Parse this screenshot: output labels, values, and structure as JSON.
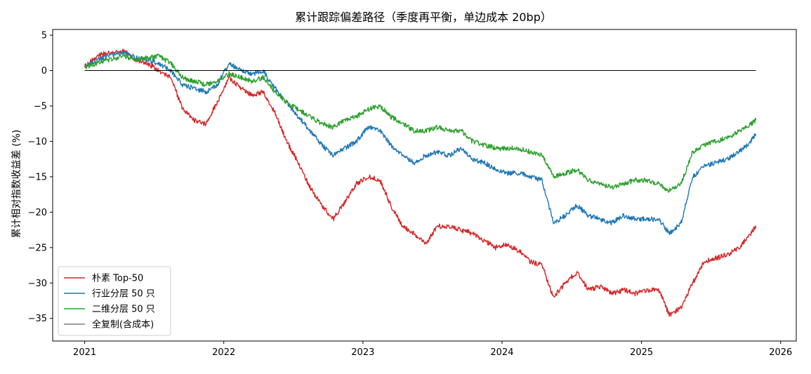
{
  "chart_data": {
    "type": "line",
    "title": "累计跟踪偏差路径（季度再平衡，单边成本 20bp）",
    "xlabel": "",
    "ylabel": "累计相对指数收益差 (%)",
    "x_ticks": [
      "2021",
      "2022",
      "2023",
      "2024",
      "2025",
      "2026"
    ],
    "y_ticks": [
      "5",
      "0",
      "−5",
      "−10",
      "−15",
      "−20",
      "−25",
      "−30",
      "−35"
    ],
    "xlim": [
      "2020-10-09",
      "2026-02-11"
    ],
    "ylim": [
      -38.2,
      5.8
    ],
    "grid": false,
    "legend": "lower-left",
    "series": [
      {
        "name": "朴素 Top-50",
        "color": "#d62728",
        "x": [
          "2021-01-01",
          "2021-02-01",
          "2021-03-01",
          "2021-04-15",
          "2021-05-15",
          "2021-06-15",
          "2021-07-15",
          "2021-08-15",
          "2021-09-15",
          "2021-10-15",
          "2021-11-15",
          "2021-12-15",
          "2022-01-15",
          "2022-02-15",
          "2022-03-15",
          "2022-04-15",
          "2022-05-15",
          "2022-06-15",
          "2022-07-15",
          "2022-08-15",
          "2022-09-15",
          "2022-10-15",
          "2022-11-15",
          "2022-12-15",
          "2023-01-15",
          "2023-02-15",
          "2023-03-15",
          "2023-04-15",
          "2023-05-15",
          "2023-06-15",
          "2023-07-15",
          "2023-08-15",
          "2023-09-15",
          "2023-10-15",
          "2023-11-15",
          "2023-12-15",
          "2024-01-15",
          "2024-02-15",
          "2024-03-15",
          "2024-04-15",
          "2024-05-15",
          "2024-06-15",
          "2024-07-15",
          "2024-08-15",
          "2024-09-15",
          "2024-10-15",
          "2024-11-15",
          "2024-12-15",
          "2025-01-15",
          "2025-02-15",
          "2025-03-15",
          "2025-04-15",
          "2025-05-15",
          "2025-06-15",
          "2025-07-15",
          "2025-08-15",
          "2025-09-15",
          "2025-10-15",
          "2025-10-28"
        ],
        "y": [
          0.5,
          2.0,
          2.5,
          2.8,
          1.5,
          1.0,
          0.0,
          -1.0,
          -5.5,
          -7.0,
          -7.5,
          -4.5,
          -1.0,
          -2.5,
          -3.5,
          -3.0,
          -6.0,
          -10.0,
          -13.0,
          -16.5,
          -19.0,
          -21.0,
          -18.5,
          -16.0,
          -15.0,
          -15.5,
          -19.0,
          -22.0,
          -23.0,
          -24.5,
          -22.0,
          -22.0,
          -22.5,
          -23.0,
          -24.0,
          -25.0,
          -24.5,
          -25.5,
          -27.0,
          -27.5,
          -32.0,
          -30.0,
          -28.5,
          -31.0,
          -30.5,
          -31.5,
          -31.0,
          -31.5,
          -31.0,
          -31.0,
          -34.5,
          -33.5,
          -30.0,
          -27.0,
          -26.5,
          -26.0,
          -25.0,
          -23.0,
          -22.0
        ]
      },
      {
        "name": "行业分层 50 只",
        "color": "#1f77b4",
        "x": [
          "2021-01-01",
          "2021-02-01",
          "2021-03-01",
          "2021-04-15",
          "2021-05-15",
          "2021-06-15",
          "2021-07-15",
          "2021-08-15",
          "2021-09-15",
          "2021-10-15",
          "2021-11-15",
          "2021-12-15",
          "2022-01-15",
          "2022-02-15",
          "2022-03-15",
          "2022-04-15",
          "2022-05-15",
          "2022-06-15",
          "2022-07-15",
          "2022-08-15",
          "2022-09-15",
          "2022-10-15",
          "2022-11-15",
          "2022-12-15",
          "2023-01-15",
          "2023-02-15",
          "2023-03-15",
          "2023-04-15",
          "2023-05-15",
          "2023-06-15",
          "2023-07-15",
          "2023-08-15",
          "2023-09-15",
          "2023-10-15",
          "2023-11-15",
          "2023-12-15",
          "2024-01-15",
          "2024-02-15",
          "2024-03-15",
          "2024-04-15",
          "2024-05-15",
          "2024-06-15",
          "2024-07-15",
          "2024-08-15",
          "2024-09-15",
          "2024-10-15",
          "2024-11-15",
          "2024-12-15",
          "2025-01-15",
          "2025-02-15",
          "2025-03-15",
          "2025-04-15",
          "2025-05-15",
          "2025-06-15",
          "2025-07-15",
          "2025-08-15",
          "2025-09-15",
          "2025-10-15",
          "2025-10-28"
        ],
        "y": [
          0.5,
          1.5,
          2.0,
          2.5,
          1.8,
          1.5,
          1.0,
          0.0,
          -2.0,
          -2.5,
          -3.0,
          -2.0,
          1.0,
          0.0,
          -0.5,
          0.0,
          -2.5,
          -4.5,
          -6.5,
          -8.5,
          -10.5,
          -12.0,
          -11.0,
          -10.0,
          -8.0,
          -8.5,
          -10.5,
          -12.0,
          -13.0,
          -12.0,
          -11.5,
          -12.0,
          -11.0,
          -12.5,
          -13.0,
          -14.0,
          -14.5,
          -14.5,
          -15.0,
          -15.5,
          -21.5,
          -20.5,
          -19.0,
          -20.5,
          -21.0,
          -21.5,
          -20.5,
          -21.0,
          -21.0,
          -21.0,
          -23.0,
          -21.5,
          -15.0,
          -13.5,
          -13.0,
          -12.5,
          -11.5,
          -10.0,
          -9.0
        ]
      },
      {
        "name": "二维分层 50 只",
        "color": "#2ca02c",
        "x": [
          "2021-01-01",
          "2021-02-01",
          "2021-03-01",
          "2021-04-15",
          "2021-05-15",
          "2021-06-15",
          "2021-07-15",
          "2021-08-15",
          "2021-09-15",
          "2021-10-15",
          "2021-11-15",
          "2021-12-15",
          "2022-01-15",
          "2022-02-15",
          "2022-03-15",
          "2022-04-15",
          "2022-05-15",
          "2022-06-15",
          "2022-07-15",
          "2022-08-15",
          "2022-09-15",
          "2022-10-15",
          "2022-11-15",
          "2022-12-15",
          "2023-01-15",
          "2023-02-15",
          "2023-03-15",
          "2023-04-15",
          "2023-05-15",
          "2023-06-15",
          "2023-07-15",
          "2023-08-15",
          "2023-09-15",
          "2023-10-15",
          "2023-11-15",
          "2023-12-15",
          "2024-01-15",
          "2024-02-15",
          "2024-03-15",
          "2024-04-15",
          "2024-05-15",
          "2024-06-15",
          "2024-07-15",
          "2024-08-15",
          "2024-09-15",
          "2024-10-15",
          "2024-11-15",
          "2024-12-15",
          "2025-01-15",
          "2025-02-15",
          "2025-03-15",
          "2025-04-15",
          "2025-05-15",
          "2025-06-15",
          "2025-07-15",
          "2025-08-15",
          "2025-09-15",
          "2025-10-15",
          "2025-10-28"
        ],
        "y": [
          0.5,
          1.0,
          1.5,
          2.0,
          1.5,
          1.8,
          2.0,
          1.0,
          -1.0,
          -1.5,
          -2.0,
          -1.5,
          -0.5,
          -1.0,
          -1.5,
          -1.0,
          -3.0,
          -4.5,
          -5.5,
          -6.5,
          -7.5,
          -8.0,
          -7.0,
          -6.5,
          -5.5,
          -5.0,
          -6.5,
          -7.5,
          -8.5,
          -8.5,
          -8.0,
          -8.5,
          -8.5,
          -10.0,
          -10.5,
          -11.0,
          -11.0,
          -11.0,
          -11.5,
          -12.0,
          -15.0,
          -14.5,
          -14.0,
          -15.5,
          -16.0,
          -16.5,
          -16.0,
          -15.5,
          -15.5,
          -16.0,
          -17.0,
          -16.0,
          -11.5,
          -10.5,
          -10.0,
          -9.5,
          -8.5,
          -7.5,
          -7.0
        ]
      },
      {
        "name": "全复制(含成本)",
        "color": "#7f7f7f",
        "x": [
          "2021-01-01",
          "2025-10-28"
        ],
        "y": [
          0.0,
          0.0
        ]
      }
    ]
  }
}
